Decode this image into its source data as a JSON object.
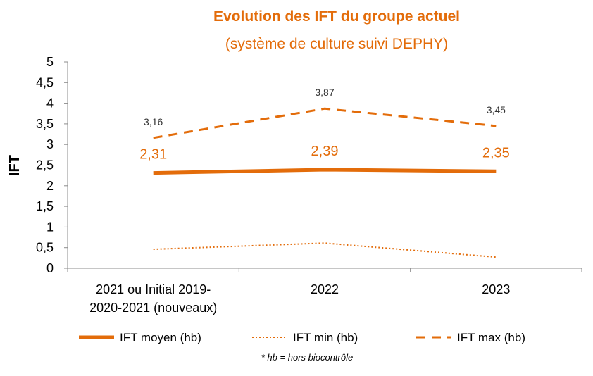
{
  "chart_data": {
    "type": "line",
    "title": "Evolution des IFT du groupe actuel",
    "subtitle": "(système de culture suivi DEPHY)",
    "ylabel": "IFT",
    "xlabel": "",
    "ylim": [
      0,
      5
    ],
    "yticks": [
      "0",
      "0,5",
      "1",
      "1,5",
      "2",
      "2,5",
      "3",
      "3,5",
      "4",
      "4,5",
      "5"
    ],
    "categories": [
      [
        "2021 ou Initial 2019-",
        "2020-2021 (nouveaux)"
      ],
      [
        "2022"
      ],
      [
        "2023"
      ]
    ],
    "series": [
      {
        "name": "IFT moyen (hb)",
        "style": "solid",
        "values": [
          2.31,
          2.39,
          2.35
        ],
        "labels": [
          "2,31",
          "2,39",
          "2,35"
        ]
      },
      {
        "name": "IFT min (hb)",
        "style": "dotted",
        "values": [
          0.46,
          0.61,
          0.27
        ],
        "labels": null
      },
      {
        "name": "IFT max (hb)",
        "style": "dashed",
        "values": [
          3.16,
          3.87,
          3.45
        ],
        "labels": [
          "3,16",
          "3,87",
          "3,45"
        ]
      }
    ],
    "color": "#e36c0a",
    "grid": false,
    "legend_position": "bottom",
    "footnote": "* hb = hors biocontrôle"
  }
}
